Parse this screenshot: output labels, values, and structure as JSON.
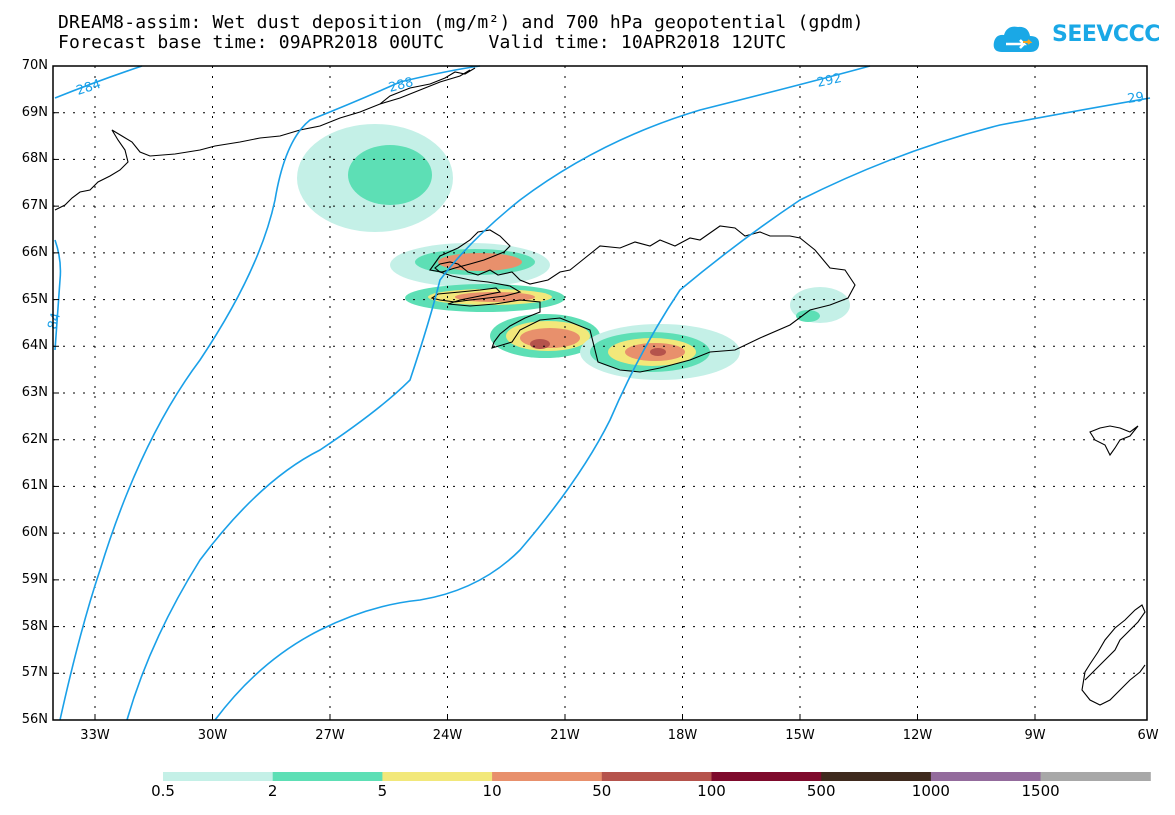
{
  "title_line1": "DREAM8-assim: Wet dust deposition (mg/m²) and 700 hPa geopotential (gpdm)",
  "title_line2": "Forecast base time: 09APR2018 00UTC    Valid time: 10APR2018 12UTC",
  "logo": {
    "text": "SEEVCCC",
    "icon": "cloud-icon",
    "color": "#1aa8e6"
  },
  "lat_labels": [
    "70N",
    "69N",
    "68N",
    "67N",
    "66N",
    "65N",
    "64N",
    "63N",
    "62N",
    "61N",
    "60N",
    "59N",
    "58N",
    "57N",
    "56N"
  ],
  "lon_labels": [
    "33W",
    "30W",
    "27W",
    "24W",
    "21W",
    "18W",
    "15W",
    "12W",
    "9W",
    "6W"
  ],
  "contour_labels": [
    "284",
    "288",
    "292",
    "29",
    "84"
  ],
  "colorbar": {
    "colors": [
      "#c4f0e7",
      "#5ddfb5",
      "#f2e87a",
      "#e8906c",
      "#b5534c",
      "#7e0a2c",
      "#3f2a1e",
      "#936b9c",
      "#a8a8a8"
    ],
    "labels": [
      "0.5",
      "2",
      "5",
      "10",
      "50",
      "100",
      "500",
      "1000",
      "1500"
    ]
  },
  "colors": {
    "contour": "#1aa0e8",
    "coast": "#000000",
    "grid": "#000000"
  }
}
